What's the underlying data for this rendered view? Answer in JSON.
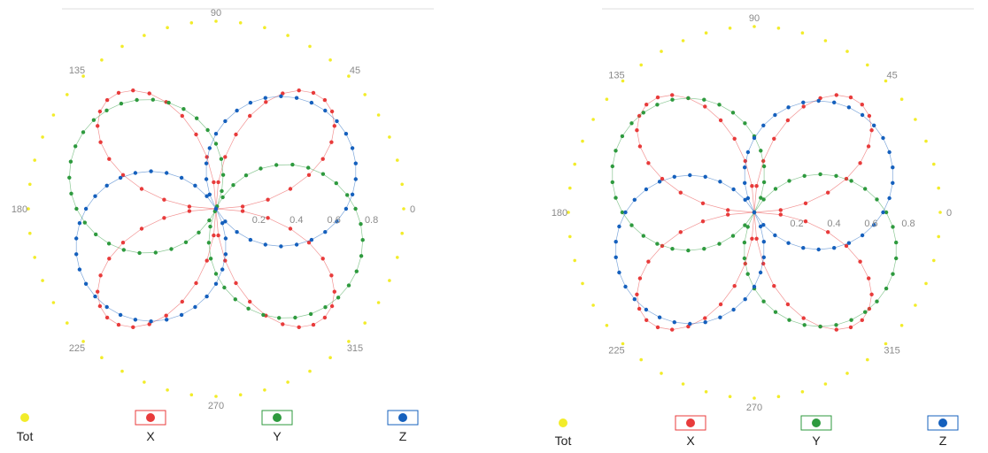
{
  "colors": {
    "Tot": "#f2ec2a",
    "X": "#e83b3b",
    "Y": "#2e9a3e",
    "Z": "#1560bd",
    "axis_text": "#8a8a8a",
    "top_line": "#dddddd"
  },
  "chart_data": [
    {
      "type": "polar-scatter",
      "angle_ticks": [
        "90",
        "45",
        "0",
        "315",
        "270",
        "225",
        "180",
        "135"
      ],
      "radial_ticks": [
        "0.2",
        "0.4",
        "0.6",
        "0.8"
      ],
      "rlim": [
        0,
        1
      ],
      "legend_position": "bottom",
      "legend": [
        "Tot",
        "X",
        "Y",
        "Z"
      ],
      "series": [
        {
          "name": "Tot",
          "pattern": "circle",
          "r_max": 1.0,
          "phase": 0
        },
        {
          "name": "X",
          "pattern": "rose-4",
          "r_max": 0.82,
          "phase": 90
        },
        {
          "name": "Y",
          "pattern": "rose-2",
          "r_max": 0.82,
          "phase": 155
        },
        {
          "name": "Z",
          "pattern": "rose-2",
          "r_max": 0.8,
          "phase": 30
        }
      ]
    },
    {
      "type": "polar-scatter",
      "angle_ticks": [
        "90",
        "45",
        "0",
        "315",
        "270",
        "225",
        "180",
        "135"
      ],
      "radial_ticks": [
        "0.2",
        "0.4",
        "0.6",
        "0.8"
      ],
      "rlim": [
        0,
        1
      ],
      "legend_position": "bottom",
      "legend": [
        "Tot",
        "X",
        "Y",
        "Z"
      ],
      "series": [
        {
          "name": "Tot",
          "pattern": "circle",
          "r_max": 1.0,
          "phase": 0
        },
        {
          "name": "X",
          "pattern": "rose-4",
          "r_max": 0.82,
          "phase": 90
        },
        {
          "name": "Y",
          "pattern": "rose-2",
          "r_max": 0.82,
          "phase": 150
        },
        {
          "name": "Z",
          "pattern": "rose-2",
          "r_max": 0.8,
          "phase": 30
        }
      ]
    }
  ]
}
